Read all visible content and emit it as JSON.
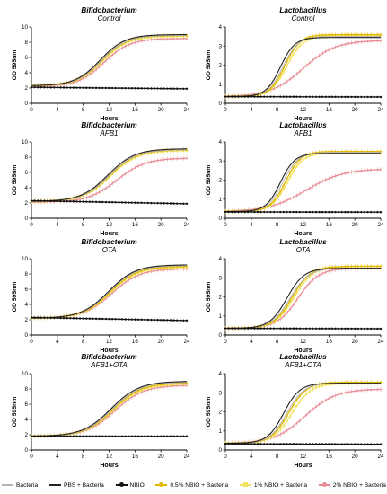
{
  "legend": [
    {
      "key": "bacteria",
      "label": "Bacteria",
      "color": "#b5b5b5",
      "marker": "none"
    },
    {
      "key": "pbs",
      "label": "PBS + Bacteria",
      "color": "#222222",
      "marker": "none"
    },
    {
      "key": "nbio",
      "label": "NBIO",
      "color": "#111111",
      "marker": "dot"
    },
    {
      "key": "n05",
      "label": "0.5% NBIO + Bacteria",
      "color": "#e3b800",
      "marker": "diamond"
    },
    {
      "key": "n1",
      "label": "1% NBIO + Bacteria",
      "color": "#f3e25b",
      "marker": "square"
    },
    {
      "key": "n2",
      "label": "2% NBIO + Bacteria",
      "color": "#e98a94",
      "marker": "triangle"
    }
  ],
  "chart_data": [
    {
      "type": "line",
      "title": "Bifidobacterium",
      "subtitle": "Control",
      "xlabel": "Hours",
      "ylabel": "OD 595nm",
      "xlim": [
        0,
        24
      ],
      "ylim": [
        0,
        10
      ],
      "xticks": [
        0,
        4,
        8,
        12,
        16,
        20,
        24
      ],
      "yticks": [
        0,
        2,
        4,
        6,
        8,
        10
      ],
      "series": [
        {
          "name": "Bacteria",
          "min": 2.3,
          "max": 8.9,
          "mid": 10.8,
          "k": 0.52
        },
        {
          "name": "PBS + Bacteria",
          "min": 2.3,
          "max": 9.0,
          "mid": 10.6,
          "k": 0.52
        },
        {
          "name": "NBIO",
          "flat_start": 2.1,
          "flat_end": 1.9
        },
        {
          "name": "0.5% NBIO + Bacteria",
          "min": 2.3,
          "max": 8.9,
          "mid": 10.9,
          "k": 0.52
        },
        {
          "name": "1% NBIO + Bacteria",
          "min": 2.3,
          "max": 8.8,
          "mid": 11.0,
          "k": 0.5
        },
        {
          "name": "2% NBIO + Bacteria",
          "min": 2.2,
          "max": 8.5,
          "mid": 11.2,
          "k": 0.5
        }
      ]
    },
    {
      "type": "line",
      "title": "Lactobacillus",
      "subtitle": "Control",
      "xlabel": "Hours",
      "ylabel": "OD 595nm",
      "xlim": [
        0,
        24
      ],
      "ylim": [
        0,
        4
      ],
      "xticks": [
        0,
        4,
        8,
        12,
        16,
        20,
        24
      ],
      "yticks": [
        0,
        1,
        2,
        3,
        4
      ],
      "series": [
        {
          "name": "Bacteria",
          "min": 0.35,
          "max": 3.5,
          "mid": 8.9,
          "k": 0.85
        },
        {
          "name": "PBS + Bacteria",
          "min": 0.35,
          "max": 3.45,
          "mid": 8.5,
          "k": 0.9
        },
        {
          "name": "NBIO",
          "flat_start": 0.35,
          "flat_end": 0.33
        },
        {
          "name": "0.5% NBIO + Bacteria",
          "min": 0.35,
          "max": 3.6,
          "mid": 9.2,
          "k": 0.85
        },
        {
          "name": "1% NBIO + Bacteria",
          "min": 0.35,
          "max": 3.55,
          "mid": 9.5,
          "k": 0.8
        },
        {
          "name": "2% NBIO + Bacteria",
          "min": 0.35,
          "max": 3.3,
          "mid": 12.0,
          "k": 0.4
        }
      ]
    },
    {
      "type": "line",
      "title": "Bifidobacterium",
      "subtitle": "AFB1",
      "xlabel": "Hours",
      "ylabel": "OD 595nm",
      "xlim": [
        0,
        24
      ],
      "ylim": [
        0,
        10
      ],
      "xticks": [
        0,
        4,
        8,
        12,
        16,
        20,
        24
      ],
      "yticks": [
        0,
        2,
        4,
        6,
        8,
        10
      ],
      "series": [
        {
          "name": "Bacteria",
          "min": 2.2,
          "max": 9.0,
          "mid": 12.0,
          "k": 0.48
        },
        {
          "name": "PBS + Bacteria",
          "min": 2.2,
          "max": 9.1,
          "mid": 11.8,
          "k": 0.48
        },
        {
          "name": "NBIO",
          "flat_start": 2.3,
          "flat_end": 1.9
        },
        {
          "name": "0.5% NBIO + Bacteria",
          "min": 2.2,
          "max": 9.0,
          "mid": 12.1,
          "k": 0.48
        },
        {
          "name": "1% NBIO + Bacteria",
          "min": 2.2,
          "max": 8.9,
          "mid": 12.2,
          "k": 0.47
        },
        {
          "name": "2% NBIO + Bacteria",
          "min": 2.1,
          "max": 7.9,
          "mid": 13.2,
          "k": 0.45
        }
      ]
    },
    {
      "type": "line",
      "title": "Lactobacillus",
      "subtitle": "AFB1",
      "xlabel": "Hours",
      "ylabel": "OD 595nm",
      "xlim": [
        0,
        24
      ],
      "ylim": [
        0,
        4
      ],
      "xticks": [
        0,
        4,
        8,
        12,
        16,
        20,
        24
      ],
      "yticks": [
        0,
        1,
        2,
        3,
        4
      ],
      "series": [
        {
          "name": "Bacteria",
          "min": 0.35,
          "max": 3.45,
          "mid": 8.9,
          "k": 0.85
        },
        {
          "name": "PBS + Bacteria",
          "min": 0.35,
          "max": 3.4,
          "mid": 8.5,
          "k": 0.9
        },
        {
          "name": "NBIO",
          "flat_start": 0.33,
          "flat_end": 0.32
        },
        {
          "name": "0.5% NBIO + Bacteria",
          "min": 0.35,
          "max": 3.5,
          "mid": 9.3,
          "k": 0.85
        },
        {
          "name": "1% NBIO + Bacteria",
          "min": 0.35,
          "max": 3.45,
          "mid": 9.6,
          "k": 0.8
        },
        {
          "name": "2% NBIO + Bacteria",
          "min": 0.35,
          "max": 2.6,
          "mid": 12.5,
          "k": 0.35
        }
      ]
    },
    {
      "type": "line",
      "title": "Bifidobacterium",
      "subtitle": "OTA",
      "xlabel": "Hours",
      "ylabel": "OD 595nm",
      "xlim": [
        0,
        24
      ],
      "ylim": [
        0,
        10
      ],
      "xticks": [
        0,
        4,
        8,
        12,
        16,
        20,
        24
      ],
      "yticks": [
        0,
        2,
        4,
        6,
        8,
        10
      ],
      "series": [
        {
          "name": "Bacteria",
          "min": 2.2,
          "max": 9.1,
          "mid": 12.0,
          "k": 0.48
        },
        {
          "name": "PBS + Bacteria",
          "min": 2.2,
          "max": 9.2,
          "mid": 11.9,
          "k": 0.48
        },
        {
          "name": "NBIO",
          "flat_start": 2.3,
          "flat_end": 1.9
        },
        {
          "name": "0.5% NBIO + Bacteria",
          "min": 2.2,
          "max": 9.0,
          "mid": 12.1,
          "k": 0.48
        },
        {
          "name": "1% NBIO + Bacteria",
          "min": 2.2,
          "max": 8.9,
          "mid": 12.2,
          "k": 0.47
        },
        {
          "name": "2% NBIO + Bacteria",
          "min": 2.2,
          "max": 8.7,
          "mid": 12.4,
          "k": 0.46
        }
      ]
    },
    {
      "type": "line",
      "title": "Lactobacillus",
      "subtitle": "OTA",
      "xlabel": "Hours",
      "ylabel": "OD 595nm",
      "xlim": [
        0,
        24
      ],
      "ylim": [
        0,
        4
      ],
      "xticks": [
        0,
        4,
        8,
        12,
        16,
        20,
        24
      ],
      "yticks": [
        0,
        1,
        2,
        3,
        4
      ],
      "series": [
        {
          "name": "Bacteria",
          "min": 0.35,
          "max": 3.5,
          "mid": 10.0,
          "k": 0.7
        },
        {
          "name": "PBS + Bacteria",
          "min": 0.35,
          "max": 3.5,
          "mid": 9.5,
          "k": 0.75
        },
        {
          "name": "NBIO",
          "flat_start": 0.35,
          "flat_end": 0.33
        },
        {
          "name": "0.5% NBIO + Bacteria",
          "min": 0.35,
          "max": 3.6,
          "mid": 10.3,
          "k": 0.7
        },
        {
          "name": "1% NBIO + Bacteria",
          "min": 0.35,
          "max": 3.6,
          "mid": 10.6,
          "k": 0.68
        },
        {
          "name": "2% NBIO + Bacteria",
          "min": 0.35,
          "max": 3.5,
          "mid": 11.2,
          "k": 0.62
        }
      ]
    },
    {
      "type": "line",
      "title": "Bifidobacterium",
      "subtitle": "AFB1+OTA",
      "xlabel": "Hours",
      "ylabel": "OD 595nm",
      "xlim": [
        0,
        24
      ],
      "ylim": [
        0,
        10
      ],
      "xticks": [
        0,
        4,
        8,
        12,
        16,
        20,
        24
      ],
      "yticks": [
        0,
        2,
        4,
        6,
        8,
        10
      ],
      "series": [
        {
          "name": "Bacteria",
          "min": 1.8,
          "max": 8.9,
          "mid": 12.5,
          "k": 0.46
        },
        {
          "name": "PBS + Bacteria",
          "min": 1.8,
          "max": 9.0,
          "mid": 12.3,
          "k": 0.46
        },
        {
          "name": "NBIO",
          "flat_start": 1.8,
          "flat_end": 1.8
        },
        {
          "name": "0.5% NBIO + Bacteria",
          "min": 1.8,
          "max": 8.8,
          "mid": 12.6,
          "k": 0.46
        },
        {
          "name": "1% NBIO + Bacteria",
          "min": 1.8,
          "max": 8.7,
          "mid": 12.7,
          "k": 0.45
        },
        {
          "name": "2% NBIO + Bacteria",
          "min": 1.8,
          "max": 8.5,
          "mid": 12.9,
          "k": 0.45
        }
      ]
    },
    {
      "type": "line",
      "title": "Lactobacillus",
      "subtitle": "AFB1+OTA",
      "xlabel": "Hours",
      "ylabel": "OD 595nm",
      "xlim": [
        0,
        24
      ],
      "ylim": [
        0,
        4
      ],
      "xticks": [
        0,
        4,
        8,
        12,
        16,
        20,
        24
      ],
      "yticks": [
        0,
        1,
        2,
        3,
        4
      ],
      "series": [
        {
          "name": "Bacteria",
          "min": 0.35,
          "max": 3.5,
          "mid": 9.5,
          "k": 0.75
        },
        {
          "name": "PBS + Bacteria",
          "min": 0.35,
          "max": 3.5,
          "mid": 9.0,
          "k": 0.8
        },
        {
          "name": "NBIO",
          "flat_start": 0.32,
          "flat_end": 0.3
        },
        {
          "name": "0.5% NBIO + Bacteria",
          "min": 0.35,
          "max": 3.55,
          "mid": 9.8,
          "k": 0.72
        },
        {
          "name": "1% NBIO + Bacteria",
          "min": 0.35,
          "max": 3.5,
          "mid": 10.3,
          "k": 0.68
        },
        {
          "name": "2% NBIO + Bacteria",
          "min": 0.35,
          "max": 3.2,
          "mid": 12.3,
          "k": 0.42
        }
      ]
    }
  ]
}
